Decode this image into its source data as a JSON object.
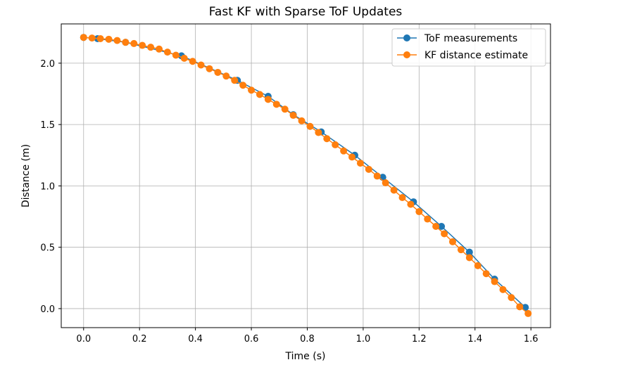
{
  "chart_data": {
    "type": "line",
    "title": "Fast KF with Sparse ToF Updates",
    "xlabel": "Time (s)",
    "ylabel": "Distance (m)",
    "xlim": [
      -0.08,
      1.67
    ],
    "ylim": [
      -0.155,
      2.32
    ],
    "xticks": [
      0.0,
      0.2,
      0.4,
      0.6,
      0.8,
      1.0,
      1.2,
      1.4,
      1.6
    ],
    "xtick_labels": [
      "0.0",
      "0.2",
      "0.4",
      "0.6",
      "0.8",
      "1.0",
      "1.2",
      "1.4",
      "1.6"
    ],
    "yticks": [
      0.0,
      0.5,
      1.0,
      1.5,
      2.0
    ],
    "ytick_labels": [
      "0.0",
      "0.5",
      "1.0",
      "1.5",
      "2.0"
    ],
    "grid": true,
    "legend": "top-right",
    "series": [
      {
        "name": "ToF measurements",
        "color": "#1f77b4",
        "x": [
          0.0,
          0.05,
          0.15,
          0.35,
          0.55,
          0.66,
          0.75,
          0.85,
          0.97,
          1.07,
          1.18,
          1.28,
          1.38,
          1.47,
          1.58
        ],
        "y": [
          2.21,
          2.2,
          2.17,
          2.06,
          1.86,
          1.73,
          1.58,
          1.44,
          1.25,
          1.07,
          0.87,
          0.67,
          0.46,
          0.24,
          0.01
        ]
      },
      {
        "name": "KF distance estimate",
        "color": "#ff7f0e",
        "x": [
          0.0,
          0.03,
          0.06,
          0.09,
          0.12,
          0.15,
          0.18,
          0.21,
          0.24,
          0.27,
          0.3,
          0.33,
          0.36,
          0.39,
          0.42,
          0.45,
          0.48,
          0.51,
          0.54,
          0.57,
          0.6,
          0.63,
          0.66,
          0.69,
          0.72,
          0.75,
          0.78,
          0.81,
          0.84,
          0.87,
          0.9,
          0.93,
          0.96,
          0.99,
          1.02,
          1.05,
          1.08,
          1.11,
          1.14,
          1.17,
          1.2,
          1.23,
          1.26,
          1.29,
          1.32,
          1.35,
          1.38,
          1.41,
          1.44,
          1.47,
          1.5,
          1.53,
          1.56,
          1.59
        ],
        "y": [
          2.21,
          2.205,
          2.2,
          2.195,
          2.185,
          2.17,
          2.16,
          2.145,
          2.13,
          2.115,
          2.09,
          2.065,
          2.04,
          2.015,
          1.985,
          1.955,
          1.925,
          1.895,
          1.86,
          1.82,
          1.78,
          1.745,
          1.705,
          1.665,
          1.625,
          1.575,
          1.53,
          1.485,
          1.435,
          1.385,
          1.335,
          1.285,
          1.235,
          1.185,
          1.135,
          1.08,
          1.025,
          0.965,
          0.905,
          0.85,
          0.79,
          0.73,
          0.67,
          0.61,
          0.545,
          0.48,
          0.415,
          0.35,
          0.285,
          0.22,
          0.155,
          0.09,
          0.015,
          -0.04
        ]
      }
    ]
  }
}
